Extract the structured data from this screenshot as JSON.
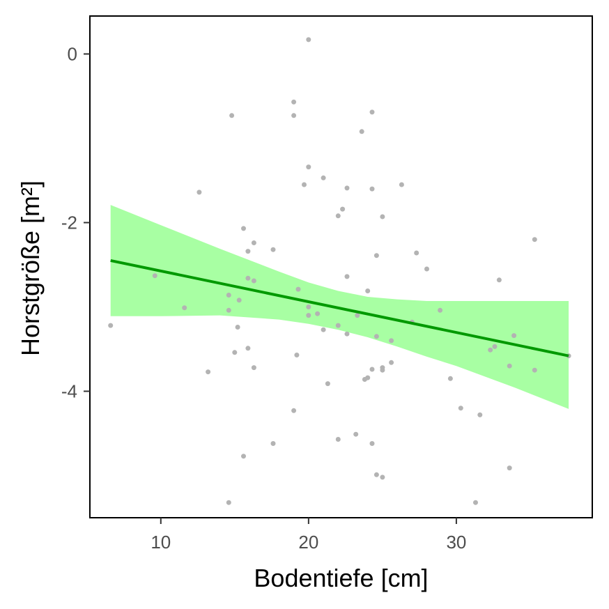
{
  "chart_data": {
    "type": "scatter",
    "xlabel": "Bodentiefe [cm]",
    "ylabel": "Horstgröße [m²]",
    "xlim": [
      5.2,
      39.2
    ],
    "ylim": [
      -5.5,
      0.45
    ],
    "x_ticks": [
      10,
      20,
      30
    ],
    "y_ticks": [
      0,
      -2,
      -4
    ],
    "grid": false,
    "legend": "none",
    "colors": {
      "points": "#b3b3b3",
      "line": "#009900",
      "ribbon": "#a8ffa3",
      "frame": "#000000"
    },
    "points": [
      {
        "x": 6.6,
        "y": -3.22
      },
      {
        "x": 9.6,
        "y": -2.63
      },
      {
        "x": 11.6,
        "y": -3.01
      },
      {
        "x": 12.6,
        "y": -1.64
      },
      {
        "x": 13.2,
        "y": -3.77
      },
      {
        "x": 14.6,
        "y": -3.04
      },
      {
        "x": 14.6,
        "y": -2.86
      },
      {
        "x": 14.6,
        "y": -5.32
      },
      {
        "x": 14.8,
        "y": -0.73
      },
      {
        "x": 15.0,
        "y": -3.54
      },
      {
        "x": 15.2,
        "y": -3.24
      },
      {
        "x": 15.3,
        "y": -2.92
      },
      {
        "x": 15.6,
        "y": -2.07
      },
      {
        "x": 15.6,
        "y": -4.77
      },
      {
        "x": 15.9,
        "y": -2.34
      },
      {
        "x": 15.9,
        "y": -2.66
      },
      {
        "x": 15.9,
        "y": -3.49
      },
      {
        "x": 16.3,
        "y": -2.24
      },
      {
        "x": 16.3,
        "y": -2.69
      },
      {
        "x": 16.3,
        "y": -3.72
      },
      {
        "x": 17.6,
        "y": -2.32
      },
      {
        "x": 17.6,
        "y": -4.62
      },
      {
        "x": 19.0,
        "y": -0.57
      },
      {
        "x": 19.0,
        "y": -0.73
      },
      {
        "x": 19.0,
        "y": -4.23
      },
      {
        "x": 19.2,
        "y": -3.57
      },
      {
        "x": 19.3,
        "y": -2.79
      },
      {
        "x": 19.7,
        "y": -1.55
      },
      {
        "x": 20.0,
        "y": 0.17
      },
      {
        "x": 20.0,
        "y": -1.34
      },
      {
        "x": 20.0,
        "y": -3.0
      },
      {
        "x": 20.0,
        "y": -3.1
      },
      {
        "x": 20.6,
        "y": -3.08
      },
      {
        "x": 21.0,
        "y": -1.47
      },
      {
        "x": 21.0,
        "y": -3.27
      },
      {
        "x": 21.3,
        "y": -3.91
      },
      {
        "x": 22.0,
        "y": -1.92
      },
      {
        "x": 22.0,
        "y": -3.22
      },
      {
        "x": 22.0,
        "y": -4.57
      },
      {
        "x": 22.3,
        "y": -1.84
      },
      {
        "x": 22.6,
        "y": -1.59
      },
      {
        "x": 22.6,
        "y": -2.64
      },
      {
        "x": 22.6,
        "y": -3.32
      },
      {
        "x": 23.2,
        "y": -4.51
      },
      {
        "x": 23.3,
        "y": -3.1
      },
      {
        "x": 23.6,
        "y": -0.92
      },
      {
        "x": 23.8,
        "y": -3.86
      },
      {
        "x": 24.0,
        "y": -2.81
      },
      {
        "x": 24.0,
        "y": -3.84
      },
      {
        "x": 24.3,
        "y": -0.69
      },
      {
        "x": 24.3,
        "y": -1.6
      },
      {
        "x": 24.3,
        "y": -3.74
      },
      {
        "x": 24.3,
        "y": -4.62
      },
      {
        "x": 24.6,
        "y": -2.39
      },
      {
        "x": 24.6,
        "y": -3.35
      },
      {
        "x": 24.6,
        "y": -4.99
      },
      {
        "x": 25.0,
        "y": -1.93
      },
      {
        "x": 25.0,
        "y": -3.72
      },
      {
        "x": 25.0,
        "y": -3.75
      },
      {
        "x": 25.0,
        "y": -5.02
      },
      {
        "x": 25.6,
        "y": -3.4
      },
      {
        "x": 25.6,
        "y": -3.66
      },
      {
        "x": 26.3,
        "y": -1.55
      },
      {
        "x": 27.0,
        "y": -3.18
      },
      {
        "x": 27.3,
        "y": -2.36
      },
      {
        "x": 28.0,
        "y": -2.55
      },
      {
        "x": 28.9,
        "y": -3.04
      },
      {
        "x": 29.6,
        "y": -3.85
      },
      {
        "x": 30.3,
        "y": -4.2
      },
      {
        "x": 31.3,
        "y": -5.32
      },
      {
        "x": 31.6,
        "y": -4.28
      },
      {
        "x": 32.3,
        "y": -3.51
      },
      {
        "x": 32.6,
        "y": -3.47
      },
      {
        "x": 32.9,
        "y": -2.68
      },
      {
        "x": 33.6,
        "y": -3.7
      },
      {
        "x": 33.6,
        "y": -4.91
      },
      {
        "x": 33.9,
        "y": -3.34
      },
      {
        "x": 35.3,
        "y": -2.2
      },
      {
        "x": 35.3,
        "y": -3.75
      },
      {
        "x": 37.6,
        "y": -3.58
      }
    ],
    "trend_line": {
      "x": [
        6.6,
        37.6
      ],
      "y": [
        -2.45,
        -3.58
      ]
    },
    "confidence_band": {
      "x": [
        6.6,
        10,
        14,
        18,
        20,
        22,
        24,
        26,
        28,
        30,
        34,
        37.6
      ],
      "upper": [
        -1.79,
        -2.03,
        -2.31,
        -2.58,
        -2.71,
        -2.81,
        -2.88,
        -2.91,
        -2.93,
        -2.93,
        -2.93,
        -2.93
      ],
      "lower": [
        -3.11,
        -3.11,
        -3.1,
        -3.15,
        -3.2,
        -3.27,
        -3.36,
        -3.47,
        -3.59,
        -3.7,
        -3.96,
        -4.21
      ]
    }
  }
}
